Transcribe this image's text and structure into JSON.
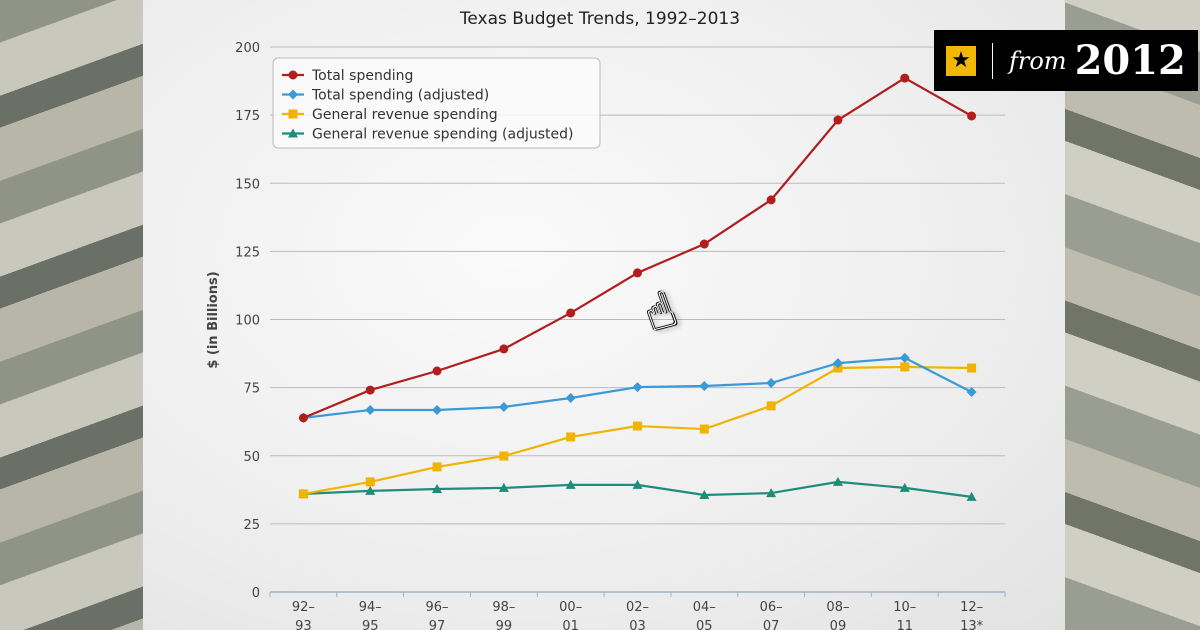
{
  "badge": {
    "icon": "star-icon",
    "from_label": "from",
    "year": "2012",
    "accent": "#f2b705"
  },
  "chart_data": {
    "type": "line",
    "title": "Texas Budget Trends, 1992–2013",
    "ylabel": "$ (in Billions)",
    "xlabel": "",
    "ylim": [
      0,
      200
    ],
    "yticks": [
      0,
      25,
      50,
      75,
      100,
      125,
      150,
      175,
      200
    ],
    "grid": true,
    "legend": "top-left",
    "categories": [
      [
        "92–",
        "93"
      ],
      [
        "94–",
        "95"
      ],
      [
        "96–",
        "97"
      ],
      [
        "98–",
        "99"
      ],
      [
        "00–",
        "01"
      ],
      [
        "02–",
        "03"
      ],
      [
        "04–",
        "05"
      ],
      [
        "06–",
        "07"
      ],
      [
        "08–",
        "09"
      ],
      [
        "10–",
        "11"
      ],
      [
        "12–",
        "13*"
      ]
    ],
    "series": [
      {
        "name": "Total spending",
        "color": "#b01e1e",
        "marker": "circle",
        "values": [
          63.9,
          74.1,
          81.1,
          89.2,
          102.4,
          117.1,
          127.7,
          143.9,
          173.2,
          188.6,
          174.7
        ]
      },
      {
        "name": "Total spending (adjusted)",
        "color": "#3a9ad9",
        "marker": "diamond",
        "values": [
          63.9,
          66.8,
          66.8,
          67.9,
          71.2,
          75.2,
          75.6,
          76.7,
          84.0,
          85.9,
          73.4
        ]
      },
      {
        "name": "General revenue spending",
        "color": "#f0b400",
        "marker": "square",
        "values": [
          36.0,
          40.4,
          45.9,
          49.9,
          56.9,
          60.9,
          59.8,
          68.3,
          82.2,
          82.6,
          82.2
        ]
      },
      {
        "name": "General revenue spending (adjusted)",
        "color": "#1f8c7a",
        "marker": "triangle",
        "values": [
          36.0,
          37.1,
          37.8,
          38.2,
          39.3,
          39.3,
          35.6,
          36.3,
          40.4,
          38.2,
          34.9
        ]
      }
    ]
  }
}
